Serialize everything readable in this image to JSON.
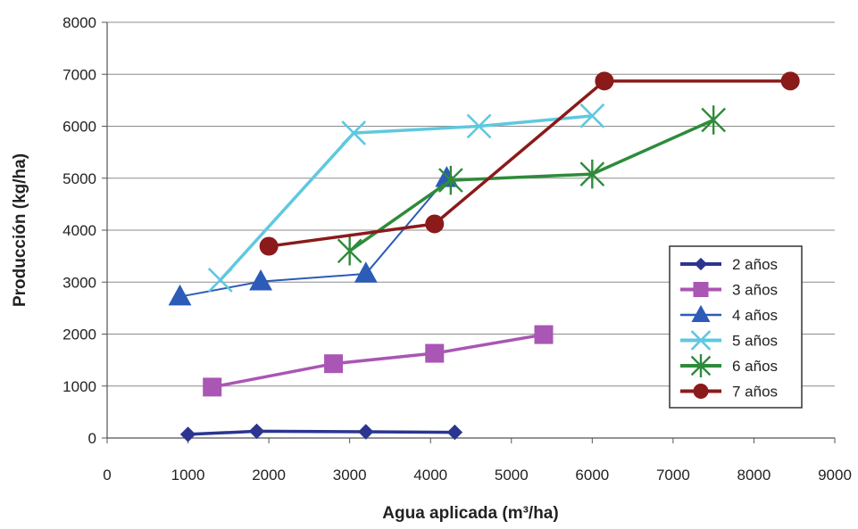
{
  "chart_data": {
    "type": "line",
    "title": "",
    "xlabel": "Agua aplicada (m³/ha)",
    "ylabel": "Producción (kg/ha)",
    "xlim": [
      0,
      9000
    ],
    "ylim": [
      0,
      8000
    ],
    "xticks": [
      "0",
      "1000",
      "2000",
      "3000",
      "4000",
      "5000",
      "6000",
      "7000",
      "8000",
      "9000"
    ],
    "yticks": [
      "0",
      "1000",
      "2000",
      "3000",
      "4000",
      "5000",
      "6000",
      "7000",
      "8000"
    ],
    "grid": "horizontal",
    "legend_position": "right",
    "series": [
      {
        "name": "2 años",
        "color": "#2b3590",
        "marker": "diamond",
        "x": [
          1000,
          1850,
          3200,
          4300
        ],
        "y": [
          70,
          130,
          120,
          110
        ]
      },
      {
        "name": "3 años",
        "color": "#a956b4",
        "marker": "square",
        "x": [
          1300,
          2800,
          4050,
          5400
        ],
        "y": [
          980,
          1430,
          1630,
          1990
        ]
      },
      {
        "name": "4 años",
        "color": "#2c5bb8",
        "marker": "triangle",
        "x": [
          900,
          1900,
          3200,
          4200
        ],
        "y": [
          2720,
          3010,
          3160,
          5000
        ]
      },
      {
        "name": "5 años",
        "color": "#5fc8e0",
        "marker": "x",
        "x": [
          1400,
          3050,
          4600,
          6000
        ],
        "y": [
          3040,
          5870,
          6000,
          6200
        ]
      },
      {
        "name": "6 años",
        "color": "#2e8b3a",
        "marker": "star",
        "x": [
          3000,
          4250,
          6000,
          7500
        ],
        "y": [
          3600,
          4960,
          5080,
          6120
        ]
      },
      {
        "name": "7 años",
        "color": "#8b1a1a",
        "marker": "circle",
        "x": [
          2000,
          4050,
          6150,
          8450
        ],
        "y": [
          3690,
          4120,
          6870,
          6870
        ]
      }
    ]
  }
}
